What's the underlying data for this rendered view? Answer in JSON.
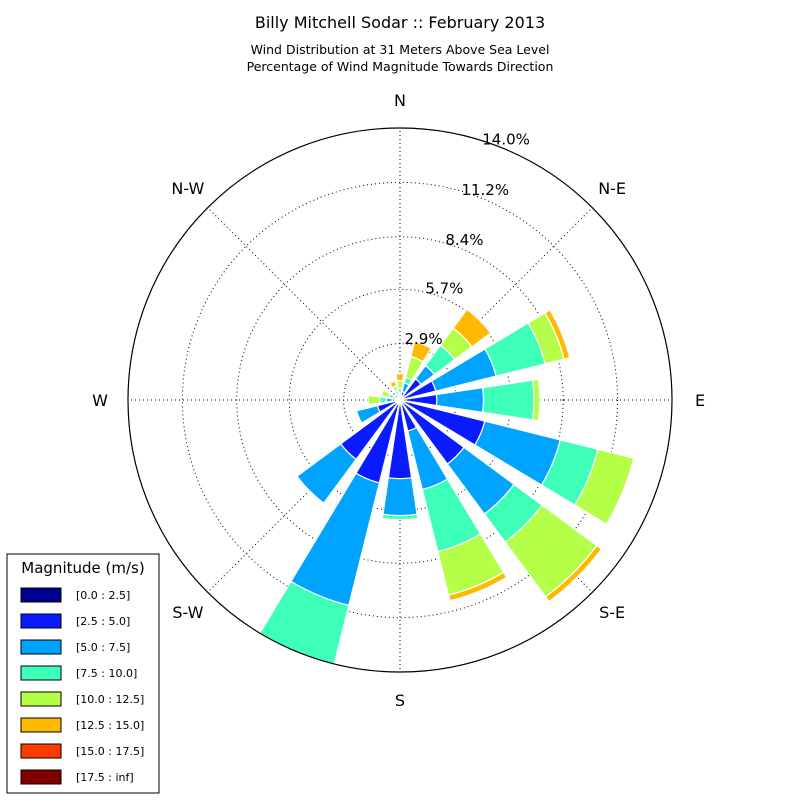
{
  "title": "Billy Mitchell Sodar :: February 2013",
  "subtitle_line1": "Wind Distribution at 31 Meters Above Sea Level",
  "subtitle_line2": "Percentage of Wind Magnitude Towards Direction",
  "chart_data": {
    "type": "windrose",
    "title": "Billy Mitchell Sodar :: February 2013",
    "subtitle": [
      "Wind Distribution at 31 Meters Above Sea Level",
      "Percentage of Wind Magnitude Towards Direction"
    ],
    "direction_labels": [
      "E",
      "N-E",
      "N",
      "N-W",
      "W",
      "S-W",
      "S",
      "S-E"
    ],
    "direction_angles_deg": [
      0,
      45,
      90,
      135,
      180,
      225,
      270,
      315
    ],
    "radial_ticks": [
      2.9,
      5.7,
      8.4,
      11.2,
      14.0
    ],
    "radial_tick_labels": [
      "2.9%",
      "5.7%",
      "8.4%",
      "11.2%",
      "14.0%"
    ],
    "rmax": 14.0,
    "grid": true,
    "legend": {
      "title": "Magnitude (m/s)",
      "placement": "bottom-left",
      "entries": [
        {
          "label": "[0.0 : 2.5]",
          "color": "#00008f"
        },
        {
          "label": "[2.5 : 5.0]",
          "color": "#0b1bff"
        },
        {
          "label": "[5.0 : 7.5]",
          "color": "#00a4ff"
        },
        {
          "label": "[7.5 : 10.0]",
          "color": "#3effb8"
        },
        {
          "label": "[10.0 : 12.5]",
          "color": "#b4ff47"
        },
        {
          "label": "[12.5 : 15.0]",
          "color": "#ffb900"
        },
        {
          "label": "[15.0 : 17.5]",
          "color": "#ff3a00"
        },
        {
          "label": "[17.5 : inf]",
          "color": "#800000"
        }
      ]
    },
    "sector_width_deg": 17,
    "sector_gap_deg": 5.5,
    "sector_directions_deg": [
      0,
      22.5,
      45,
      67.5,
      90,
      112.5,
      135,
      157.5,
      180,
      202.5,
      225,
      247.5,
      270,
      292.5,
      315,
      337.5
    ],
    "series_note": "cumulative stacked percentages per direction, bins in legend order",
    "sectors": [
      {
        "dir_deg": 0,
        "cumulative": [
          0.15,
          1.9,
          4.3,
          6.9,
          7.2,
          7.2,
          7.2,
          7.2
        ]
      },
      {
        "dir_deg": 22.5,
        "cumulative": [
          0.15,
          1.9,
          5.1,
          7.7,
          8.7,
          9.0,
          9.0,
          9.0
        ]
      },
      {
        "dir_deg": 45,
        "cumulative": [
          0.15,
          1.35,
          2.2,
          3.5,
          4.6,
          5.8,
          5.8,
          5.8
        ]
      },
      {
        "dir_deg": 67.5,
        "cumulative": [
          0.1,
          0.45,
          0.9,
          1.2,
          2.3,
          3.1,
          3.1,
          3.1
        ]
      },
      {
        "dir_deg": 90,
        "cumulative": [
          0.05,
          0.25,
          0.35,
          0.6,
          1.0,
          1.35,
          1.35,
          1.35
        ]
      },
      {
        "dir_deg": 112.5,
        "cumulative": [
          0.05,
          0.15,
          0.3,
          0.5,
          0.75,
          1.0,
          1.0,
          1.0
        ]
      },
      {
        "dir_deg": 135,
        "cumulative": [
          0.05,
          0.1,
          0.15,
          0.2,
          0.2,
          0.2,
          0.2,
          0.2
        ]
      },
      {
        "dir_deg": 157.5,
        "cumulative": [
          0.05,
          0.2,
          0.35,
          0.6,
          1.0,
          1.0,
          1.0,
          1.0
        ]
      },
      {
        "dir_deg": 180,
        "cumulative": [
          0.05,
          0.4,
          0.7,
          1.05,
          1.65,
          1.65,
          1.65,
          1.65
        ]
      },
      {
        "dir_deg": 202.5,
        "cumulative": [
          0.05,
          1.2,
          2.3,
          2.3,
          2.3,
          2.3,
          2.3,
          2.3
        ]
      },
      {
        "dir_deg": 225,
        "cumulative": [
          0.05,
          3.8,
          6.6,
          6.6,
          6.6,
          6.6,
          6.6,
          6.6
        ]
      },
      {
        "dir_deg": 247.5,
        "cumulative": [
          0.05,
          4.4,
          10.9,
          14.0,
          14.0,
          14.0,
          14.0,
          14.0
        ]
      },
      {
        "dir_deg": 270,
        "cumulative": [
          0.05,
          4.05,
          5.95,
          6.15,
          6.15,
          6.15,
          6.15,
          6.15
        ]
      },
      {
        "dir_deg": 292.5,
        "cumulative": [
          0.05,
          1.65,
          4.75,
          8.05,
          10.35,
          10.65,
          10.65,
          10.65
        ]
      },
      {
        "dir_deg": 315,
        "cumulative": [
          0.05,
          4.1,
          7.3,
          9.1,
          12.6,
          12.9,
          12.9,
          12.9
        ]
      },
      {
        "dir_deg": 337.5,
        "cumulative": [
          0.05,
          4.5,
          8.5,
          10.5,
          12.4,
          12.4,
          12.4,
          12.4
        ]
      }
    ]
  }
}
